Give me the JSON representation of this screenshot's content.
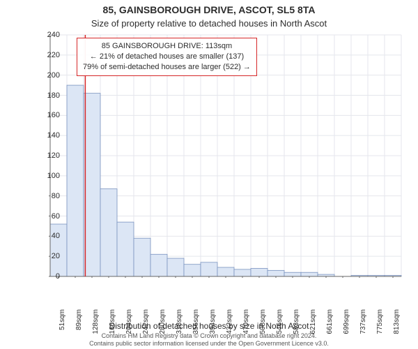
{
  "title_main": "85, GAINSBOROUGH DRIVE, ASCOT, SL5 8TA",
  "title_sub": "Size of property relative to detached houses in North Ascot",
  "ylabel": "Number of detached properties",
  "xlabel": "Distribution of detached houses by size in North Ascot",
  "attribution_line1": "Contains HM Land Registry data © Crown copyright and database right 2024.",
  "attribution_line2": "Contains public sector information licensed under the Open Government Licence v3.0.",
  "infobox": {
    "line1": "85 GAINSBOROUGH DRIVE: 113sqm",
    "line2": "← 21% of detached houses are smaller (137)",
    "line3": "79% of semi-detached houses are larger (522) →",
    "border_color": "#d62728"
  },
  "chart": {
    "type": "histogram",
    "ylim": [
      0,
      240
    ],
    "ytick_step": 20,
    "x_categories": [
      "51sqm",
      "89sqm",
      "128sqm",
      "166sqm",
      "204sqm",
      "242sqm",
      "280sqm",
      "318sqm",
      "356sqm",
      "394sqm",
      "432sqm",
      "470sqm",
      "508sqm",
      "546sqm",
      "583sqm",
      "621sqm",
      "661sqm",
      "699sqm",
      "737sqm",
      "775sqm",
      "813sqm"
    ],
    "values": [
      52,
      190,
      182,
      87,
      54,
      38,
      22,
      18,
      12,
      14,
      9,
      7,
      8,
      6,
      4,
      4,
      2,
      0,
      1,
      1,
      1
    ],
    "bar_fill": "#dce6f5",
    "bar_stroke": "#7a93bf",
    "grid_color": "#e4e6ec",
    "axis_color": "#666666",
    "tick_color": "#666666",
    "background": "#ffffff",
    "marker_line": {
      "x_index": 1.6,
      "color": "#d62728",
      "width": 1.5
    }
  }
}
